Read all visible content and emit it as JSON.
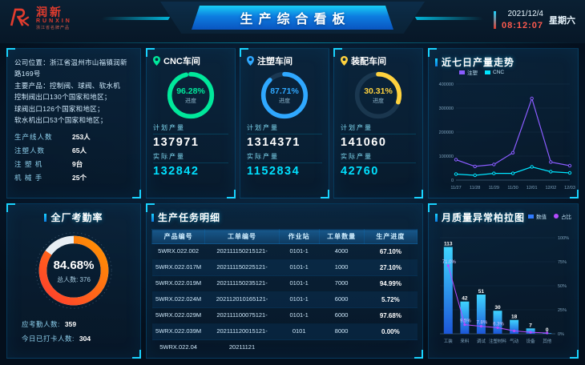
{
  "header": {
    "logo": {
      "cn": "润新",
      "en": "RUNXIN",
      "tagline": "浙江省名牌产品"
    },
    "title": "生产综合看板",
    "date": "2021/12/4",
    "time": "08:12:07",
    "weekday": "星期六"
  },
  "company": {
    "lines": [
      "公司位置：浙江省温州市山福镇润新路169号",
      "主要产品：控制阀、球阀、软水机",
      "控制阀出口130个国家和地区；",
      "球阀出口126个国家和地区；",
      "软水机出口53个国家和地区；"
    ],
    "stats": [
      {
        "label": "生产线人数",
        "value": "253人"
      },
      {
        "label": "注塑人数",
        "value": "65人"
      },
      {
        "label": "注 塑 机",
        "value": "9台"
      },
      {
        "label": "机 械 手",
        "value": "25个"
      }
    ]
  },
  "workshops": [
    {
      "name": "CNC车间",
      "progress": 96.28,
      "progress_label": "96.28%",
      "progress_caption": "进度",
      "plan_label": "计划产量",
      "plan_value": "137971",
      "actual_label": "实际产量",
      "actual_value": "132842",
      "ring_color": "#00e89b"
    },
    {
      "name": "注塑车间",
      "progress": 87.71,
      "progress_label": "87.71%",
      "progress_caption": "进度",
      "plan_label": "计划产量",
      "plan_value": "1314371",
      "actual_label": "实际产量",
      "actual_value": "1152834",
      "ring_color": "#2fa8ff"
    },
    {
      "name": "装配车间",
      "progress": 30.31,
      "progress_label": "30.31%",
      "progress_caption": "进度",
      "plan_label": "计划产量",
      "plan_value": "141060",
      "actual_label": "实际产量",
      "actual_value": "42760",
      "ring_color": "#ffd23e"
    }
  ],
  "attendance": {
    "title": "全厂考勤率",
    "rate": 84.68,
    "rate_label": "84.68%",
    "total_label": "总人数:",
    "total_value": "376",
    "rows": [
      {
        "label": "应考勤人数:",
        "value": "359"
      },
      {
        "label": "今日已打卡人数:",
        "value": "304"
      }
    ],
    "gauge_colors": [
      "#ff3b2f",
      "#ff9500"
    ]
  },
  "task_table": {
    "title": "生产任务明细",
    "headers": [
      "产品编号",
      "工单编号",
      "作业站",
      "工单数量",
      "生产进度"
    ],
    "rows": [
      [
        "5WRX.022.002",
        "202111150215121-",
        "0101-1",
        "4000",
        "67.10%"
      ],
      [
        "5WRX.022.017M",
        "202111150225121-",
        "0101-1",
        "1000",
        "27.10%"
      ],
      [
        "5WRX.022.019M",
        "202111150235121-",
        "0101-1",
        "7000",
        "94.99%"
      ],
      [
        "5WRX.022.024M",
        "202112010165121-",
        "0101-1",
        "6000",
        "5.72%"
      ],
      [
        "5WRX.022.029M",
        "202111100075121-",
        "0101-1",
        "6000",
        "97.68%"
      ],
      [
        "5WRX.022.039M",
        "202111120015121-",
        "0101",
        "8000",
        "0.00%"
      ],
      [
        "5WRX.022.04",
        "20211121",
        "",
        "",
        ""
      ]
    ]
  },
  "chart_data": [
    {
      "type": "line",
      "title": "近七日产量走势",
      "x": [
        "11/27",
        "11/28",
        "11/29",
        "11/30",
        "12/01",
        "12/02",
        "12/03"
      ],
      "series": [
        {
          "name": "注塑",
          "color": "#8a5cff",
          "values": [
            85000,
            57000,
            65000,
            114000,
            340000,
            75000,
            60000
          ]
        },
        {
          "name": "CNC",
          "color": "#00e5ff",
          "values": [
            25000,
            20000,
            28000,
            28000,
            55000,
            35000,
            30000
          ]
        }
      ],
      "ylim": [
        0,
        400000
      ],
      "yticks": [
        0,
        100000,
        200000,
        300000,
        400000
      ],
      "legend_position": "top-left",
      "grid": true
    },
    {
      "type": "bar",
      "title": "月质量异常柏拉图",
      "categories": [
        "工装",
        "来料",
        "调试",
        "注塑材料",
        "气动",
        "设备",
        "其他"
      ],
      "series": [
        {
          "name": "数值",
          "kind": "bar",
          "color": "#2f7bff",
          "values": [
            113,
            42,
            51,
            30,
            18,
            7,
            0
          ]
        },
        {
          "name": "占比",
          "kind": "line",
          "color": "#b44bff",
          "values": [
            71.0,
            9.5,
            7.8,
            6.3,
            3.0,
            1.6,
            0.8
          ]
        }
      ],
      "pct_labels": [
        "71.0%",
        "9.5%",
        "7.8%",
        "6.3%",
        "",
        "",
        ""
      ],
      "ylim_left": [
        0,
        125
      ],
      "ylim_right": [
        0,
        100
      ],
      "right_ticks": [
        0,
        25,
        50,
        75,
        100
      ],
      "legend_position": "top-right",
      "grid": true
    }
  ]
}
